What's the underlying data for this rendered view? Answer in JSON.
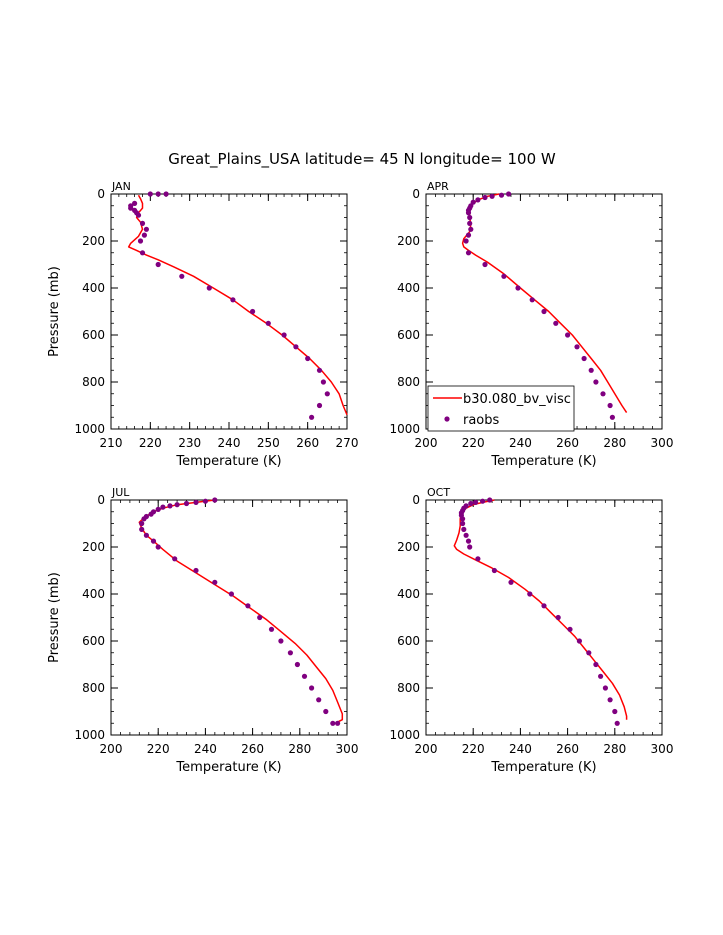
{
  "title": "Great_Plains_USA  latitude= 45 N longitude= 100 W",
  "legend": {
    "model_label": "b30.080_bv_visc",
    "obs_label": "raobs",
    "model_color": "#ff0000",
    "obs_color": "#800080"
  },
  "chart_data": [
    {
      "type": "line",
      "panel": "JAN",
      "xlabel": "Temperature (K)",
      "ylabel": "Pressure (mb)",
      "xlim": [
        210,
        270
      ],
      "ylim": [
        1000,
        0
      ],
      "x_ticks": [
        210,
        220,
        230,
        240,
        250,
        260,
        270
      ],
      "y_ticks": [
        0,
        200,
        400,
        600,
        800,
        1000
      ],
      "series": [
        {
          "name": "b30.080_bv_visc",
          "kind": "line",
          "points": [
            [
              217,
              5
            ],
            [
              217.5,
              20
            ],
            [
              218,
              40
            ],
            [
              218,
              60
            ],
            [
              217,
              80
            ],
            [
              216.5,
              100
            ],
            [
              217.5,
              120
            ],
            [
              218,
              150
            ],
            [
              217,
              180
            ],
            [
              215,
              210
            ],
            [
              214.5,
              225
            ],
            [
              216.5,
              240
            ],
            [
              219,
              260
            ],
            [
              222,
              280
            ],
            [
              226,
              310
            ],
            [
              231,
              350
            ],
            [
              236,
              400
            ],
            [
              241,
              450
            ],
            [
              245,
              500
            ],
            [
              249.5,
              550
            ],
            [
              253.5,
              600
            ],
            [
              257,
              650
            ],
            [
              260.5,
              700
            ],
            [
              263.5,
              750
            ],
            [
              266,
              800
            ],
            [
              268,
              850
            ],
            [
              269,
              900
            ],
            [
              270,
              940
            ]
          ]
        },
        {
          "name": "raobs",
          "kind": "scatter",
          "points": [
            [
              224,
              0
            ],
            [
              222,
              0
            ],
            [
              220,
              0
            ],
            [
              216,
              40
            ],
            [
              215,
              50
            ],
            [
              215,
              60
            ],
            [
              216,
              70
            ],
            [
              216.5,
              80
            ],
            [
              217,
              90
            ],
            [
              218,
              125
            ],
            [
              219,
              150
            ],
            [
              218.5,
              175
            ],
            [
              217.5,
              200
            ],
            [
              218,
              250
            ],
            [
              222,
              300
            ],
            [
              228,
              350
            ],
            [
              235,
              400
            ],
            [
              241,
              450
            ],
            [
              246,
              500
            ],
            [
              250,
              550
            ],
            [
              254,
              600
            ],
            [
              257,
              650
            ],
            [
              260,
              700
            ],
            [
              263,
              750
            ],
            [
              264,
              800
            ],
            [
              265,
              850
            ],
            [
              263,
              900
            ],
            [
              261,
              950
            ]
          ]
        }
      ]
    },
    {
      "type": "line",
      "panel": "APR",
      "xlabel": "Temperature (K)",
      "ylabel": "",
      "xlim": [
        200,
        300
      ],
      "ylim": [
        1000,
        0
      ],
      "x_ticks": [
        200,
        220,
        240,
        260,
        280,
        300
      ],
      "y_ticks": [
        0,
        200,
        400,
        600,
        800,
        1000
      ],
      "legend_position": "bottom-left",
      "series": [
        {
          "name": "b30.080_bv_visc",
          "kind": "line",
          "points": [
            [
              231,
              0
            ],
            [
              226,
              10
            ],
            [
              222,
              25
            ],
            [
              219.5,
              45
            ],
            [
              218.5,
              70
            ],
            [
              218.5,
              100
            ],
            [
              219,
              130
            ],
            [
              218.5,
              160
            ],
            [
              216,
              190
            ],
            [
              215.5,
              210
            ],
            [
              216,
              225
            ],
            [
              218,
              240
            ],
            [
              221,
              260
            ],
            [
              226,
              290
            ],
            [
              233,
              340
            ],
            [
              240,
              400
            ],
            [
              246,
              450
            ],
            [
              252,
              500
            ],
            [
              257,
              550
            ],
            [
              262,
              600
            ],
            [
              266,
              650
            ],
            [
              270,
              700
            ],
            [
              274,
              750
            ],
            [
              277,
              800
            ],
            [
              280,
              850
            ],
            [
              283,
              900
            ],
            [
              285,
              930
            ]
          ]
        },
        {
          "name": "raobs",
          "kind": "scatter",
          "points": [
            [
              235,
              0
            ],
            [
              232,
              5
            ],
            [
              228,
              10
            ],
            [
              225,
              15
            ],
            [
              222,
              25
            ],
            [
              220,
              35
            ],
            [
              219,
              50
            ],
            [
              218.5,
              60
            ],
            [
              218,
              70
            ],
            [
              218,
              80
            ],
            [
              218.5,
              100
            ],
            [
              218.5,
              125
            ],
            [
              219,
              150
            ],
            [
              218,
              175
            ],
            [
              217,
              200
            ],
            [
              218,
              250
            ],
            [
              225,
              300
            ],
            [
              233,
              350
            ],
            [
              239,
              400
            ],
            [
              245,
              450
            ],
            [
              250,
              500
            ],
            [
              255,
              550
            ],
            [
              260,
              600
            ],
            [
              264,
              650
            ],
            [
              267,
              700
            ],
            [
              270,
              750
            ],
            [
              272,
              800
            ],
            [
              275,
              850
            ],
            [
              278,
              900
            ],
            [
              279,
              950
            ]
          ]
        }
      ]
    },
    {
      "type": "line",
      "panel": "JUL",
      "xlabel": "Temperature (K)",
      "ylabel": "Pressure (mb)",
      "xlim": [
        200,
        300
      ],
      "ylim": [
        1000,
        0
      ],
      "x_ticks": [
        200,
        220,
        240,
        260,
        280,
        300
      ],
      "y_ticks": [
        0,
        200,
        400,
        600,
        800,
        1000
      ],
      "series": [
        {
          "name": "b30.080_bv_visc",
          "kind": "line",
          "points": [
            [
              244,
              0
            ],
            [
              236,
              10
            ],
            [
              228,
              20
            ],
            [
              222,
              35
            ],
            [
              218,
              50
            ],
            [
              214,
              75
            ],
            [
              212,
              95
            ],
            [
              213,
              120
            ],
            [
              215,
              150
            ],
            [
              218,
              175
            ],
            [
              222,
              210
            ],
            [
              228,
              260
            ],
            [
              236,
              310
            ],
            [
              244,
              360
            ],
            [
              252,
              410
            ],
            [
              259,
              460
            ],
            [
              266,
              510
            ],
            [
              272,
              560
            ],
            [
              278,
              610
            ],
            [
              283,
              660
            ],
            [
              287,
              710
            ],
            [
              291,
              760
            ],
            [
              294,
              810
            ],
            [
              296,
              860
            ],
            [
              298,
              910
            ],
            [
              298,
              935
            ],
            [
              296,
              945
            ]
          ]
        },
        {
          "name": "raobs",
          "kind": "scatter",
          "points": [
            [
              244,
              0
            ],
            [
              240,
              5
            ],
            [
              236,
              10
            ],
            [
              232,
              15
            ],
            [
              228,
              20
            ],
            [
              225,
              25
            ],
            [
              222,
              30
            ],
            [
              220,
              40
            ],
            [
              218,
              50
            ],
            [
              217,
              60
            ],
            [
              215,
              70
            ],
            [
              214,
              80
            ],
            [
              213,
              100
            ],
            [
              213,
              125
            ],
            [
              215,
              150
            ],
            [
              218,
              175
            ],
            [
              220,
              200
            ],
            [
              227,
              250
            ],
            [
              236,
              300
            ],
            [
              244,
              350
            ],
            [
              251,
              400
            ],
            [
              258,
              450
            ],
            [
              263,
              500
            ],
            [
              268,
              550
            ],
            [
              272,
              600
            ],
            [
              276,
              650
            ],
            [
              279,
              700
            ],
            [
              282,
              750
            ],
            [
              285,
              800
            ],
            [
              288,
              850
            ],
            [
              291,
              900
            ],
            [
              294,
              950
            ],
            [
              296,
              950
            ]
          ]
        }
      ]
    },
    {
      "type": "line",
      "panel": "OCT",
      "xlabel": "Temperature (K)",
      "ylabel": "",
      "xlim": [
        200,
        300
      ],
      "ylim": [
        1000,
        0
      ],
      "x_ticks": [
        200,
        220,
        240,
        260,
        280,
        300
      ],
      "y_ticks": [
        0,
        200,
        400,
        600,
        800,
        1000
      ],
      "series": [
        {
          "name": "b30.080_bv_visc",
          "kind": "line",
          "points": [
            [
              229,
              0
            ],
            [
              224,
              10
            ],
            [
              220,
              20
            ],
            [
              217,
              35
            ],
            [
              215,
              55
            ],
            [
              214.5,
              80
            ],
            [
              214.5,
              110
            ],
            [
              214,
              140
            ],
            [
              213,
              170
            ],
            [
              212,
              195
            ],
            [
              213,
              210
            ],
            [
              216,
              230
            ],
            [
              221,
              255
            ],
            [
              228,
              290
            ],
            [
              235,
              330
            ],
            [
              242,
              380
            ],
            [
              248,
              430
            ],
            [
              253,
              480
            ],
            [
              258,
              530
            ],
            [
              263,
              580
            ],
            [
              267,
              630
            ],
            [
              271,
              680
            ],
            [
              275,
              730
            ],
            [
              279,
              780
            ],
            [
              282,
              830
            ],
            [
              284,
              880
            ],
            [
              285,
              920
            ],
            [
              285,
              935
            ]
          ]
        },
        {
          "name": "raobs",
          "kind": "scatter",
          "points": [
            [
              227,
              0
            ],
            [
              224,
              5
            ],
            [
              221,
              10
            ],
            [
              219,
              15
            ],
            [
              217,
              25
            ],
            [
              216,
              35
            ],
            [
              215.5,
              45
            ],
            [
              215,
              55
            ],
            [
              215,
              65
            ],
            [
              215.5,
              80
            ],
            [
              215.5,
              100
            ],
            [
              216,
              125
            ],
            [
              217,
              150
            ],
            [
              218,
              175
            ],
            [
              218.5,
              200
            ],
            [
              222,
              250
            ],
            [
              229,
              300
            ],
            [
              236,
              350
            ],
            [
              244,
              400
            ],
            [
              250,
              450
            ],
            [
              256,
              500
            ],
            [
              261,
              550
            ],
            [
              265,
              600
            ],
            [
              269,
              650
            ],
            [
              272,
              700
            ],
            [
              274,
              750
            ],
            [
              276,
              800
            ],
            [
              278,
              850
            ],
            [
              280,
              900
            ],
            [
              281,
              950
            ]
          ]
        }
      ]
    }
  ]
}
